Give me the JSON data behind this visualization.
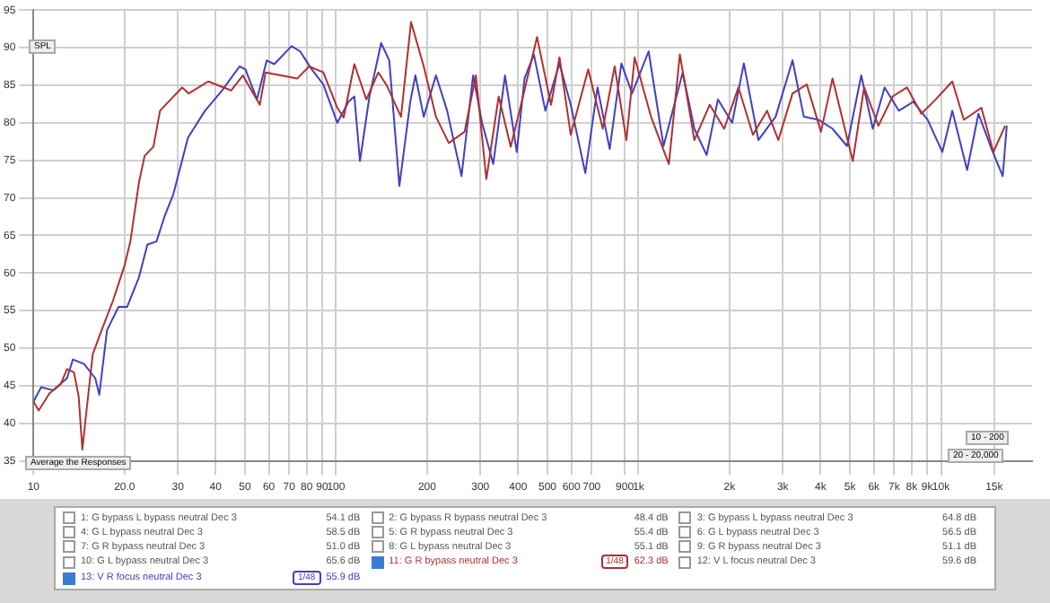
{
  "chart_data": {
    "type": "line",
    "x": [
      10,
      10.4,
      11.3,
      12.3,
      12.9,
      13.6,
      14.1,
      14.5,
      15,
      15.7,
      16.8,
      18.3,
      20,
      20.9,
      22.3,
      23.3,
      24.9,
      26.2,
      28.4,
      31,
      32.6,
      37.8,
      45,
      49.2,
      56,
      58.5,
      74.5,
      81.5,
      90.8,
      101,
      106,
      115,
      126,
      138,
      147,
      164,
      177,
      195,
      214,
      236,
      266,
      290,
      314,
      345,
      378,
      413,
      462,
      514,
      548,
      597,
      682,
      762,
      834,
      912,
      971,
      1100,
      1260,
      1370,
      1530,
      1720,
      1920,
      2140,
      2390,
      2660,
      2900,
      3230,
      3600,
      4010,
      4380,
      5110,
      5570,
      6210,
      6920,
      7720,
      8610,
      9600,
      10900,
      11900,
      13600,
      14900,
      16300
    ],
    "xlim": [
      10,
      20000
    ],
    "xticks": [
      10,
      {
        "value": 20,
        "label": "20.0"
      },
      30,
      40,
      50,
      60,
      70,
      80,
      90,
      100,
      200,
      300,
      400,
      500,
      600,
      700,
      900,
      {
        "value": 1000,
        "label": "1k"
      },
      {
        "value": 2000,
        "label": "2k"
      },
      {
        "value": 3000,
        "label": "3k"
      },
      {
        "value": 4000,
        "label": "4k"
      },
      {
        "value": 5000,
        "label": "5k"
      },
      {
        "value": 6000,
        "label": "6k"
      },
      {
        "value": 7000,
        "label": "7k"
      },
      {
        "value": 8000,
        "label": "8k"
      },
      {
        "value": 9000,
        "label": "9k"
      },
      {
        "value": 10000,
        "label": "10k"
      },
      {
        "value": 15000,
        "label": "15k"
      }
    ],
    "ylim": [
      35,
      95
    ],
    "yticks": [
      35,
      40,
      45,
      50,
      55,
      60,
      65,
      70,
      75,
      80,
      85,
      90,
      95
    ],
    "log": "x",
    "grid": true,
    "legend": "bottom",
    "marker": "none",
    "line_style": "solid",
    "series": [
      {
        "name": "11: G R bypass neutral Dec 3",
        "color": "#b03030",
        "values": [
          42.9,
          41.7,
          44,
          45.2,
          47.2,
          46.8,
          43.6,
          36.5,
          42,
          49.2,
          52.4,
          56.3,
          61,
          64.2,
          72,
          75.6,
          76.8,
          81.6,
          83.1,
          84.7,
          83.9,
          85.5,
          84.3,
          86.3,
          82.4,
          86.7,
          85.9,
          87.5,
          86.7,
          82,
          80.7,
          87.8,
          83.1,
          86.7,
          85,
          80.8,
          93.4,
          87.5,
          80.8,
          77.3,
          78.8,
          86.3,
          72.5,
          83.5,
          76.8,
          83.1,
          91.4,
          82.4,
          88.7,
          78.4,
          87.1,
          79.2,
          87.5,
          77.7,
          88.7,
          80.8,
          74.5,
          89.1,
          77.7,
          82.4,
          79.2,
          84.7,
          78.4,
          81.6,
          77.7,
          83.9,
          85.1,
          78.8,
          85.9,
          74.9,
          84.7,
          79.6,
          83.5,
          84.7,
          81.2,
          83.1,
          85.5,
          80.4,
          82,
          76.1,
          79.6
        ]
      },
      {
        "name": "13: V R focus neutral Dec 3",
        "color": "#4040c0",
        "x": [
          10,
          10.6,
          11.6,
          12.9,
          13.5,
          14.7,
          16,
          16.5,
          17.5,
          19.1,
          20.4,
          22.3,
          23.8,
          25.5,
          27.2,
          29,
          32.4,
          36.9,
          42,
          48,
          50.2,
          54.8,
          59,
          62.5,
          71.3,
          76.1,
          83.2,
          90.8,
          101,
          110,
          115,
          120,
          129,
          141,
          150,
          162,
          176,
          183,
          195,
          214,
          233,
          260,
          284,
          304,
          331,
          362,
          396,
          420,
          451,
          492,
          548,
          597,
          667,
          732,
          803,
          878,
          952,
          1080,
          1210,
          1400,
          1530,
          1680,
          1830,
          2040,
          2230,
          2490,
          2840,
          3230,
          3520,
          3930,
          4380,
          4890,
          5450,
          5950,
          6510,
          7260,
          8100,
          9030,
          10100,
          10900,
          12200,
          13300,
          14700,
          16000,
          16500
        ],
        "values": [
          42.9,
          44.8,
          44.4,
          46,
          48.5,
          47.9,
          46,
          43.8,
          52.4,
          55.5,
          55.5,
          59.4,
          63.8,
          64.2,
          67.7,
          70.5,
          78,
          81.6,
          84.3,
          87.5,
          87.1,
          83.1,
          88.3,
          87.8,
          90.2,
          89.5,
          87.1,
          85.1,
          80,
          82.8,
          83.5,
          74.9,
          83.5,
          90.6,
          88.3,
          71.6,
          82.8,
          86.3,
          80.8,
          86.3,
          81.6,
          72.9,
          86.3,
          80,
          74.5,
          86.3,
          76.1,
          85.9,
          89.1,
          81.6,
          87.9,
          82.4,
          73.3,
          84.7,
          76.5,
          87.9,
          83.9,
          89.5,
          76.9,
          86.7,
          79.2,
          75.7,
          83.1,
          80,
          87.9,
          77.7,
          80.8,
          88.3,
          80.8,
          80.4,
          79.2,
          76.9,
          86.3,
          79.2,
          84.7,
          81.6,
          82.8,
          80.4,
          76.1,
          81.6,
          73.7,
          81.2,
          76.5,
          72.9,
          79.6
        ]
      }
    ],
    "annotations": [
      "1: G bypass L bypass neutral Dec 3",
      "2: G bypass R bypass neutral Dec 3",
      "3: G bypass L bypass neutral Dec 3",
      "4: G L bypass neutral Dec 3",
      "5: G R bypass neutral Dec 3",
      "6: G L bypass neutral Dec 3",
      "7: G R bypass neutral Dec 3",
      "8: G L bypass neutral Dec 3",
      "9: G R bypass neutral Dec 3",
      "10: G L bypass neutral Dec 3",
      "12: V L focus neutral Dec 3",
      "54.1 dB",
      "48.4 dB",
      "64.8 dB",
      "58.5 dB",
      "55.4 dB",
      "56.5 dB",
      "51.0 dB",
      "55.1 dB",
      "51.1 dB",
      "65.6 dB",
      "59.6 dB",
      "62.3 dB",
      "55.9 dB",
      "1/48",
      "1/48",
      "Average the Responses",
      "SPL",
      "10 - 200",
      "20 - 20,000"
    ]
  }
}
